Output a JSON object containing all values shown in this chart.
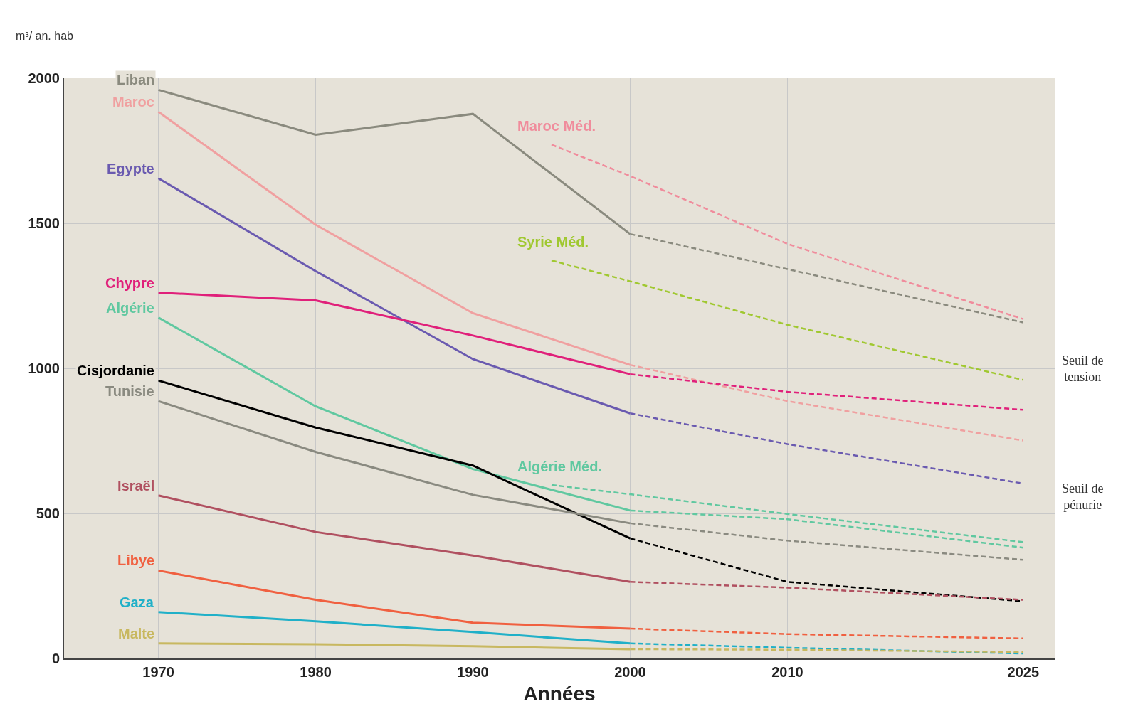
{
  "chart_data": {
    "type": "line",
    "ylabel": "m³/ an. hab",
    "xlabel": "Années",
    "xlim": [
      1964,
      2027
    ],
    "ylim": [
      0,
      2000
    ],
    "xticks": [
      1970,
      1980,
      1990,
      2000,
      2010,
      2025
    ],
    "yticks": [
      0,
      500,
      1000,
      1500,
      2000
    ],
    "grid": true,
    "legend": false,
    "marker": "none",
    "annotations": [
      "Seuil de tension",
      "Seuil de pénurie"
    ],
    "series": [
      {
        "name": "Liban",
        "color": "#8a8a7e",
        "x": [
          1970,
          1980,
          1990,
          2000
        ],
        "values": [
          1960,
          1805,
          1877,
          1463
        ]
      },
      {
        "color": "#8a8a7e",
        "line_style": "dashed",
        "x": [
          2000,
          2010,
          2025
        ],
        "values": [
          1463,
          1342,
          1158
        ]
      },
      {
        "name": "Maroc",
        "color": "#f0a0a0",
        "x": [
          1970,
          1980,
          1990,
          2000
        ],
        "values": [
          1884,
          1495,
          1190,
          1012
        ]
      },
      {
        "color": "#f0a0a0",
        "line_style": "dashed",
        "x": [
          2000,
          2010,
          2025
        ],
        "values": [
          1012,
          887,
          751
        ]
      },
      {
        "name": "Maroc Méd.",
        "color": "#f08c9c",
        "line_style": "dashed",
        "x": [
          1995,
          2000,
          2010,
          2025
        ],
        "values": [
          1771,
          1663,
          1429,
          1170
        ]
      },
      {
        "name": "Egypte",
        "color": "#6a5ab0",
        "x": [
          1970,
          1980,
          1990,
          2000
        ],
        "values": [
          1655,
          1335,
          1032,
          845
        ]
      },
      {
        "color": "#6a5ab0",
        "line_style": "dashed",
        "x": [
          2000,
          2010,
          2025
        ],
        "values": [
          845,
          739,
          603
        ]
      },
      {
        "name": "Syrie Méd.",
        "color": "#a0c830",
        "line_style": "dashed",
        "x": [
          1995,
          2000,
          2010,
          2025
        ],
        "values": [
          1372,
          1300,
          1150,
          960
        ]
      },
      {
        "name": "Chypre",
        "color": "#e0207a",
        "x": [
          1970,
          1980,
          1990,
          2000
        ],
        "values": [
          1261,
          1234,
          1113,
          980
        ]
      },
      {
        "color": "#e0207a",
        "line_style": "dashed",
        "x": [
          2000,
          2010,
          2025
        ],
        "values": [
          980,
          919,
          857
        ]
      },
      {
        "name": "Algérie",
        "color": "#60c8a0",
        "x": [
          1970,
          1980,
          1990,
          2000
        ],
        "values": [
          1175,
          869,
          653,
          510
        ]
      },
      {
        "color": "#60c8a0",
        "line_style": "dashed",
        "x": [
          2000,
          2010,
          2025
        ],
        "values": [
          510,
          480,
          382
        ]
      },
      {
        "name": "Algérie Méd.",
        "color": "#60c8a0",
        "line_style": "dashed",
        "x": [
          1995,
          2000,
          2010,
          2025
        ],
        "values": [
          598,
          566,
          498,
          401
        ]
      },
      {
        "name": "Cisjordanie",
        "color": "#000000",
        "x": [
          1970,
          1980,
          1990,
          2000
        ],
        "values": [
          958,
          796,
          665,
          414
        ]
      },
      {
        "color": "#000000",
        "line_style": "dashed",
        "x": [
          2000,
          2010,
          2025
        ],
        "values": [
          414,
          264,
          197
        ]
      },
      {
        "name": "Tunisie",
        "color": "#8a8a80",
        "x": [
          1970,
          1980,
          1990,
          2000
        ],
        "values": [
          887,
          712,
          564,
          466
        ]
      },
      {
        "color": "#8a8a80",
        "line_style": "dashed",
        "x": [
          2000,
          2010,
          2025
        ],
        "values": [
          466,
          406,
          340
        ]
      },
      {
        "name": "Israël",
        "color": "#b05060",
        "x": [
          1970,
          1980,
          1990,
          2000
        ],
        "values": [
          562,
          436,
          355,
          264
        ]
      },
      {
        "color": "#b05060",
        "line_style": "dashed",
        "x": [
          2000,
          2010,
          2025
        ],
        "values": [
          264,
          244,
          202
        ]
      },
      {
        "name": "Libye",
        "color": "#f06040",
        "x": [
          1970,
          1980,
          1990,
          2000
        ],
        "values": [
          303,
          202,
          123,
          103
        ]
      },
      {
        "color": "#f06040",
        "line_style": "dashed",
        "x": [
          2000,
          2010,
          2025
        ],
        "values": [
          103,
          84,
          69
        ]
      },
      {
        "name": "Gaza",
        "color": "#20b0c8",
        "x": [
          1970,
          1980,
          1990,
          2000
        ],
        "values": [
          160,
          128,
          91,
          52
        ]
      },
      {
        "color": "#20b0c8",
        "line_style": "dashed",
        "x": [
          2000,
          2010,
          2025
        ],
        "values": [
          52,
          37,
          17
        ]
      },
      {
        "name": "Malte",
        "color": "#c8b860",
        "x": [
          1970,
          1980,
          1990,
          2000
        ],
        "values": [
          52,
          49,
          42,
          32
        ]
      },
      {
        "color": "#c8b860",
        "line_style": "dashed",
        "x": [
          2000,
          2010,
          2025
        ],
        "values": [
          32,
          30,
          22
        ]
      }
    ]
  }
}
